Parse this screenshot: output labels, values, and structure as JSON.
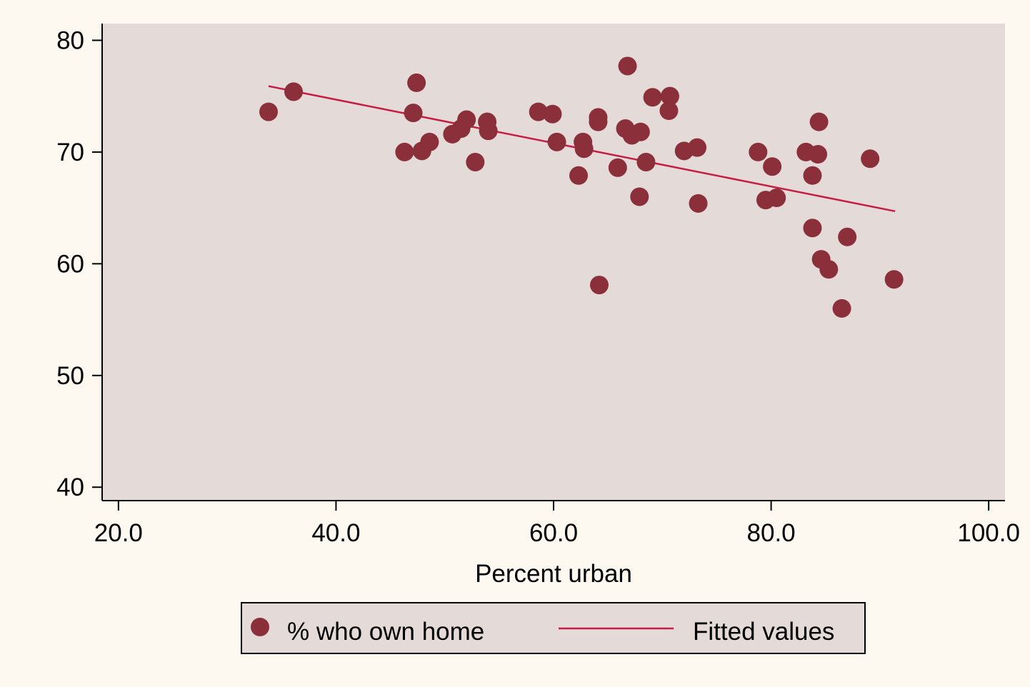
{
  "chart_data": {
    "type": "scatter",
    "xlabel": "Percent urban",
    "ylabel": "",
    "xlim": [
      18.5,
      101.5
    ],
    "ylim": [
      38.8,
      81.5
    ],
    "xticks": [
      20,
      40,
      60,
      80,
      100
    ],
    "xtick_labels": [
      "20.0",
      "40.0",
      "60.0",
      "80.0",
      "100.0"
    ],
    "yticks": [
      40,
      50,
      60,
      70,
      80
    ],
    "ytick_labels": [
      "40",
      "50",
      "60",
      "70",
      "80"
    ],
    "grid": false,
    "legend_position": "bottom",
    "series": [
      {
        "name": "% who own home",
        "kind": "scatter",
        "color": "#8B2F3A",
        "points": [
          [
            33.8,
            73.6
          ],
          [
            36.1,
            75.4
          ],
          [
            46.3,
            70.0
          ],
          [
            47.1,
            73.5
          ],
          [
            47.4,
            76.2
          ],
          [
            47.9,
            70.1
          ],
          [
            48.6,
            70.9
          ],
          [
            50.7,
            71.6
          ],
          [
            51.5,
            72.1
          ],
          [
            52.0,
            72.9
          ],
          [
            52.8,
            69.1
          ],
          [
            53.9,
            72.7
          ],
          [
            54.0,
            71.9
          ],
          [
            58.6,
            73.6
          ],
          [
            59.9,
            73.4
          ],
          [
            60.3,
            70.9
          ],
          [
            62.3,
            67.9
          ],
          [
            62.7,
            70.9
          ],
          [
            62.8,
            70.3
          ],
          [
            64.1,
            73.1
          ],
          [
            64.1,
            72.7
          ],
          [
            64.2,
            58.1
          ],
          [
            65.9,
            68.6
          ],
          [
            66.6,
            72.1
          ],
          [
            66.8,
            77.7
          ],
          [
            67.2,
            71.5
          ],
          [
            67.9,
            66.0
          ],
          [
            68.0,
            71.8
          ],
          [
            68.5,
            69.1
          ],
          [
            69.1,
            74.9
          ],
          [
            70.6,
            73.7
          ],
          [
            70.7,
            75.0
          ],
          [
            72.0,
            70.1
          ],
          [
            73.2,
            70.4
          ],
          [
            73.3,
            65.4
          ],
          [
            78.8,
            70.0
          ],
          [
            79.5,
            65.7
          ],
          [
            80.1,
            68.7
          ],
          [
            80.5,
            65.9
          ],
          [
            83.2,
            70.0
          ],
          [
            83.8,
            63.2
          ],
          [
            83.8,
            67.9
          ],
          [
            84.3,
            69.8
          ],
          [
            84.4,
            72.7
          ],
          [
            84.6,
            60.4
          ],
          [
            85.3,
            59.5
          ],
          [
            86.5,
            56.0
          ],
          [
            87.0,
            62.4
          ],
          [
            89.1,
            69.4
          ],
          [
            91.3,
            58.6
          ]
        ]
      },
      {
        "name": "Fitted values",
        "kind": "line",
        "color": "#C41E45",
        "points": [
          [
            33.8,
            75.9
          ],
          [
            91.4,
            64.7
          ]
        ]
      }
    ]
  },
  "legend": {
    "items": [
      "% who own home",
      "Fitted values"
    ]
  }
}
